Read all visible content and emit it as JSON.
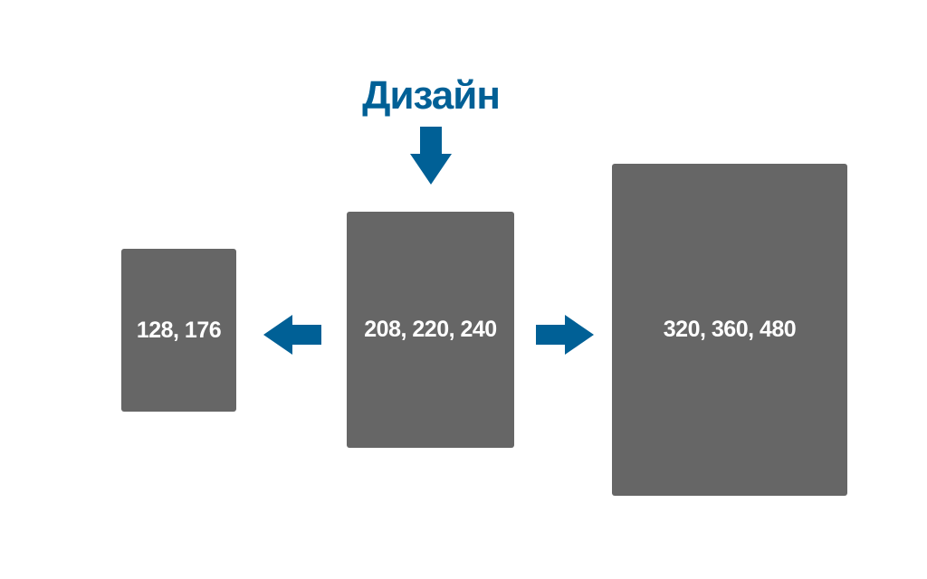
{
  "title": "Дизайн",
  "screens": {
    "small": {
      "label": "128, 176"
    },
    "medium": {
      "label": "208, 220, 240"
    },
    "large": {
      "label": "320, 360, 480"
    }
  },
  "colors": {
    "accent": "#006096",
    "box": "#666666",
    "box_text": "#ffffff",
    "background": "#ffffff"
  },
  "icons": {
    "down": "arrow-down-icon",
    "left": "arrow-left-icon",
    "right": "arrow-right-icon"
  }
}
